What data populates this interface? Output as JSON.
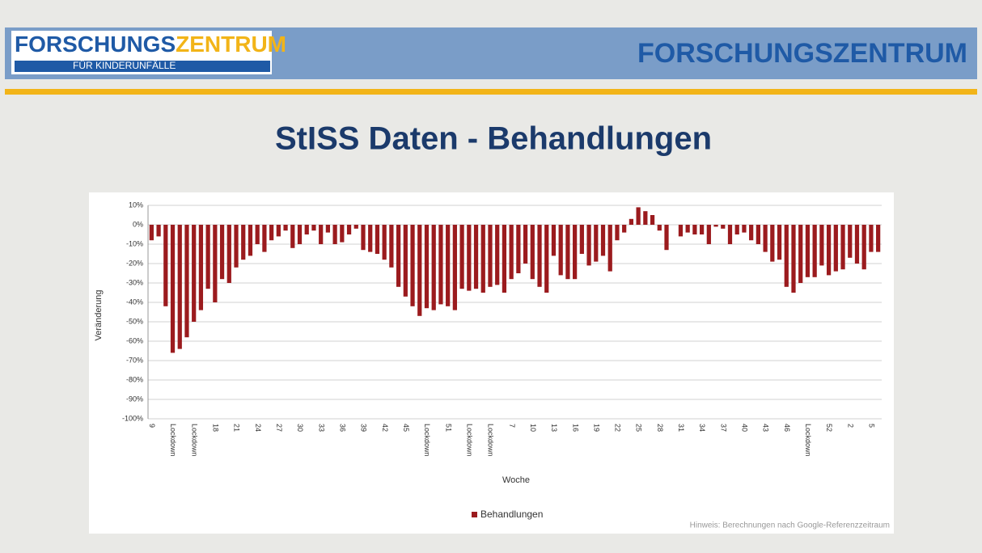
{
  "header": {
    "logo_part1": "FORSCHUNGS",
    "logo_part2": "ZENTRUM",
    "logo_sub": "FÜR KINDERUNFÄLLE",
    "brand": "FORSCHUNGSZENTRUM"
  },
  "chart_data": {
    "type": "bar",
    "title": "StISS Daten - Behandlungen",
    "ylabel": "Veränderung",
    "xlabel": "Woche",
    "note": "Hinweis: Berechnungen nach Google-Referenzzeitraum",
    "categories": [
      "9",
      null,
      null,
      "Lockdown",
      null,
      null,
      "Lockdown",
      null,
      null,
      "18",
      null,
      null,
      "21",
      null,
      null,
      "24",
      null,
      null,
      "27",
      null,
      null,
      "30",
      null,
      null,
      "33",
      null,
      null,
      "36",
      null,
      null,
      "39",
      null,
      null,
      "42",
      null,
      null,
      "45",
      null,
      null,
      "Lockdown",
      null,
      null,
      "51",
      null,
      null,
      "Lockdown",
      null,
      null,
      "Lockdown",
      null,
      null,
      "7",
      null,
      null,
      "10",
      null,
      null,
      "13",
      null,
      null,
      "16",
      null,
      null,
      "19",
      null,
      null,
      "22",
      null,
      null,
      "25",
      null,
      null,
      "28",
      null,
      null,
      "31",
      null,
      null,
      "34",
      null,
      null,
      "37",
      null,
      null,
      "40",
      null,
      null,
      "43",
      null,
      null,
      "46",
      null,
      null,
      "Lockdown",
      null,
      null,
      "52",
      null,
      null,
      "2",
      null,
      null,
      "5",
      null
    ],
    "series": [
      {
        "name": "Behandlungen",
        "color": "#9b1b1e",
        "values": [
          -8,
          -6,
          -42,
          -66,
          -64,
          -58,
          -50,
          -44,
          -33,
          -40,
          -28,
          -30,
          -22,
          -18,
          -16,
          -10,
          -14,
          -8,
          -6,
          -3,
          -12,
          -10,
          -5,
          -3,
          -10,
          -4,
          -10,
          -9,
          -5,
          -2,
          -13,
          -14,
          -15,
          -18,
          -22,
          -32,
          -37,
          -42,
          -47,
          -43,
          -44,
          -41,
          -42,
          -44,
          -33,
          -34,
          -33,
          -35,
          -32,
          -31,
          -35,
          -28,
          -25,
          -20,
          -28,
          -32,
          -35,
          -16,
          -26,
          -28,
          -28,
          -15,
          -21,
          -19,
          -16,
          -24,
          -8,
          -4,
          3,
          9,
          7,
          5,
          -3,
          -13,
          0,
          -6,
          -4,
          -5,
          -5,
          -10,
          -1,
          -2,
          -10,
          -5,
          -4,
          -8,
          -10,
          -14,
          -19,
          -18,
          -32,
          -35,
          -30,
          -27,
          -27,
          -21,
          -26,
          -24,
          -23,
          -17,
          -20,
          -23,
          -14,
          -14
        ]
      }
    ],
    "ylim": [
      -100,
      10
    ],
    "yticks": [
      {
        "value": 10,
        "label": "10%"
      },
      {
        "value": 0,
        "label": "0%"
      },
      {
        "value": -10,
        "label": "-10%"
      },
      {
        "value": -20,
        "label": "-20%"
      },
      {
        "value": -30,
        "label": "-30%"
      },
      {
        "value": -40,
        "label": "-40%"
      },
      {
        "value": -50,
        "label": "-50%"
      },
      {
        "value": -60,
        "label": "-60%"
      },
      {
        "value": -70,
        "label": "-70%"
      },
      {
        "value": -80,
        "label": "-80%"
      },
      {
        "value": -90,
        "label": "-90%"
      },
      {
        "value": -100,
        "label": "-100%"
      }
    ],
    "grid": true,
    "legend": "bottom"
  }
}
